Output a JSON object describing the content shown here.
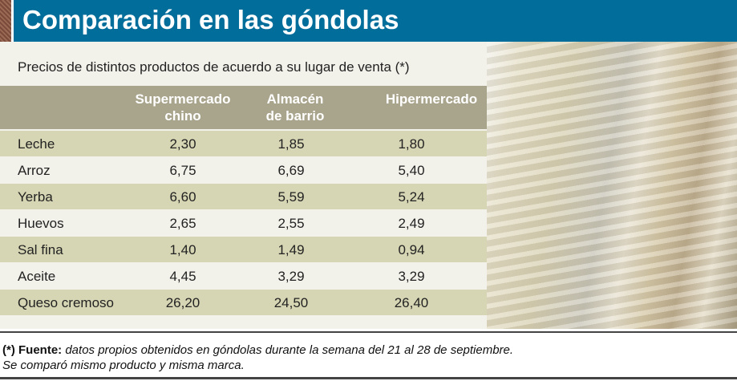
{
  "title": "Comparación en las góndolas",
  "subtitle": "Precios de distintos productos de acuerdo a su lugar de venta (*)",
  "colors": {
    "title_bar": "#006d9b",
    "header": "#a9a48c",
    "row_dark": "#d7d6b4",
    "background": "#f2f1ea"
  },
  "chart_data": {
    "type": "table",
    "columns": [
      "Supermercado chino",
      "Almacén de barrio",
      "Hipermercado"
    ],
    "rows": [
      {
        "label": "Leche",
        "values": [
          "2,30",
          "1,85",
          "1,80"
        ]
      },
      {
        "label": "Arroz",
        "values": [
          "6,75",
          "6,69",
          "5,40"
        ]
      },
      {
        "label": "Yerba",
        "values": [
          "6,60",
          "5,59",
          "5,24"
        ]
      },
      {
        "label": "Huevos",
        "values": [
          "2,65",
          "2,55",
          "2,49"
        ]
      },
      {
        "label": "Sal fina",
        "values": [
          "1,40",
          "1,49",
          "0,94"
        ]
      },
      {
        "label": "Aceite",
        "values": [
          "4,45",
          "3,29",
          "3,29"
        ]
      },
      {
        "label": "Queso cremoso",
        "values": [
          "26,20",
          "24,50",
          "26,40"
        ]
      }
    ]
  },
  "header": {
    "col1_line1": "Supermercado",
    "col1_line2": "chino",
    "col2_line1": "Almacén",
    "col2_line2": "de barrio",
    "col3_line1": "Hipermercado"
  },
  "footer": {
    "marker": "(*) Fuente:",
    "source": " datos propios obtenidos en góndolas durante la semana del 21 al 28 de septiembre.",
    "note": "Se comparó mismo producto y misma marca."
  }
}
